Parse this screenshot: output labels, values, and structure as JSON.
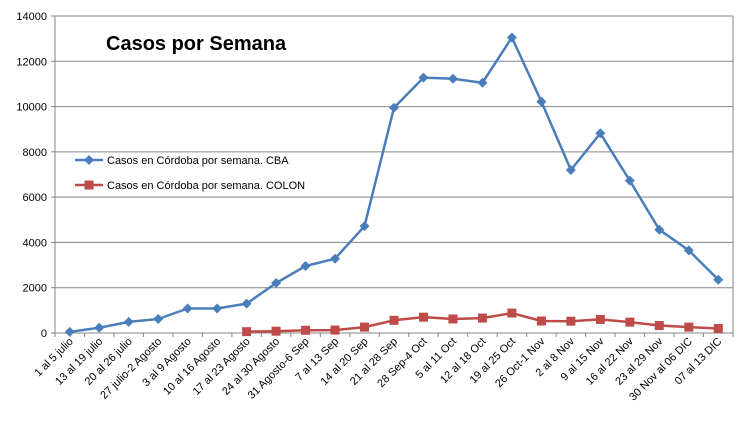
{
  "chart_data": {
    "type": "line",
    "title": "Casos por Semana",
    "xlabel": "",
    "ylabel": "",
    "ylim": [
      0,
      14000
    ],
    "yticks": [
      0,
      2000,
      4000,
      6000,
      8000,
      10000,
      12000,
      14000
    ],
    "grid": "horizontal",
    "legend_position": "left-middle",
    "categories": [
      "1 al 5 julio",
      "13 al 19 julio",
      "20 al 26 julio",
      "27 julio-2 Agosto",
      "3 al 9 Agosto",
      "10 al 16 Agosto",
      "17 al 23 Agosto",
      "24 al 30 Agosto",
      "31 Agosto-6 Sep",
      "7 al 13 Sep",
      "14 al 20 Sep",
      "21 al 28 Sep",
      "28 Sep-4 Oct",
      "5 al 11 Oct",
      "12 al 18 Oct",
      "19 al 25 Oct",
      "26 Oct-1 Nov",
      "2 al 8 Nov",
      "9 al 15 Nov",
      "16 al 22 Nov",
      "23 al 29 Nov",
      "30 Nov al 06 DIC",
      "07 al 13 DIC"
    ],
    "series": [
      {
        "name": "Casos en Córdoba por semana. CBA",
        "color": "#4a7ebb",
        "marker": "diamond",
        "values": [
          50,
          230,
          490,
          620,
          1080,
          1080,
          1300,
          2210,
          2960,
          3280,
          4720,
          9950,
          11280,
          11230,
          11050,
          13050,
          10220,
          7200,
          8820,
          6730,
          4560,
          3650,
          2350
        ]
      },
      {
        "name": "Casos en Córdoba por semana. COLON",
        "color": "#be4b48",
        "marker": "square",
        "values": [
          null,
          null,
          null,
          null,
          null,
          null,
          60,
          80,
          120,
          130,
          260,
          560,
          700,
          620,
          660,
          880,
          530,
          520,
          600,
          480,
          330,
          260,
          200
        ]
      }
    ]
  }
}
